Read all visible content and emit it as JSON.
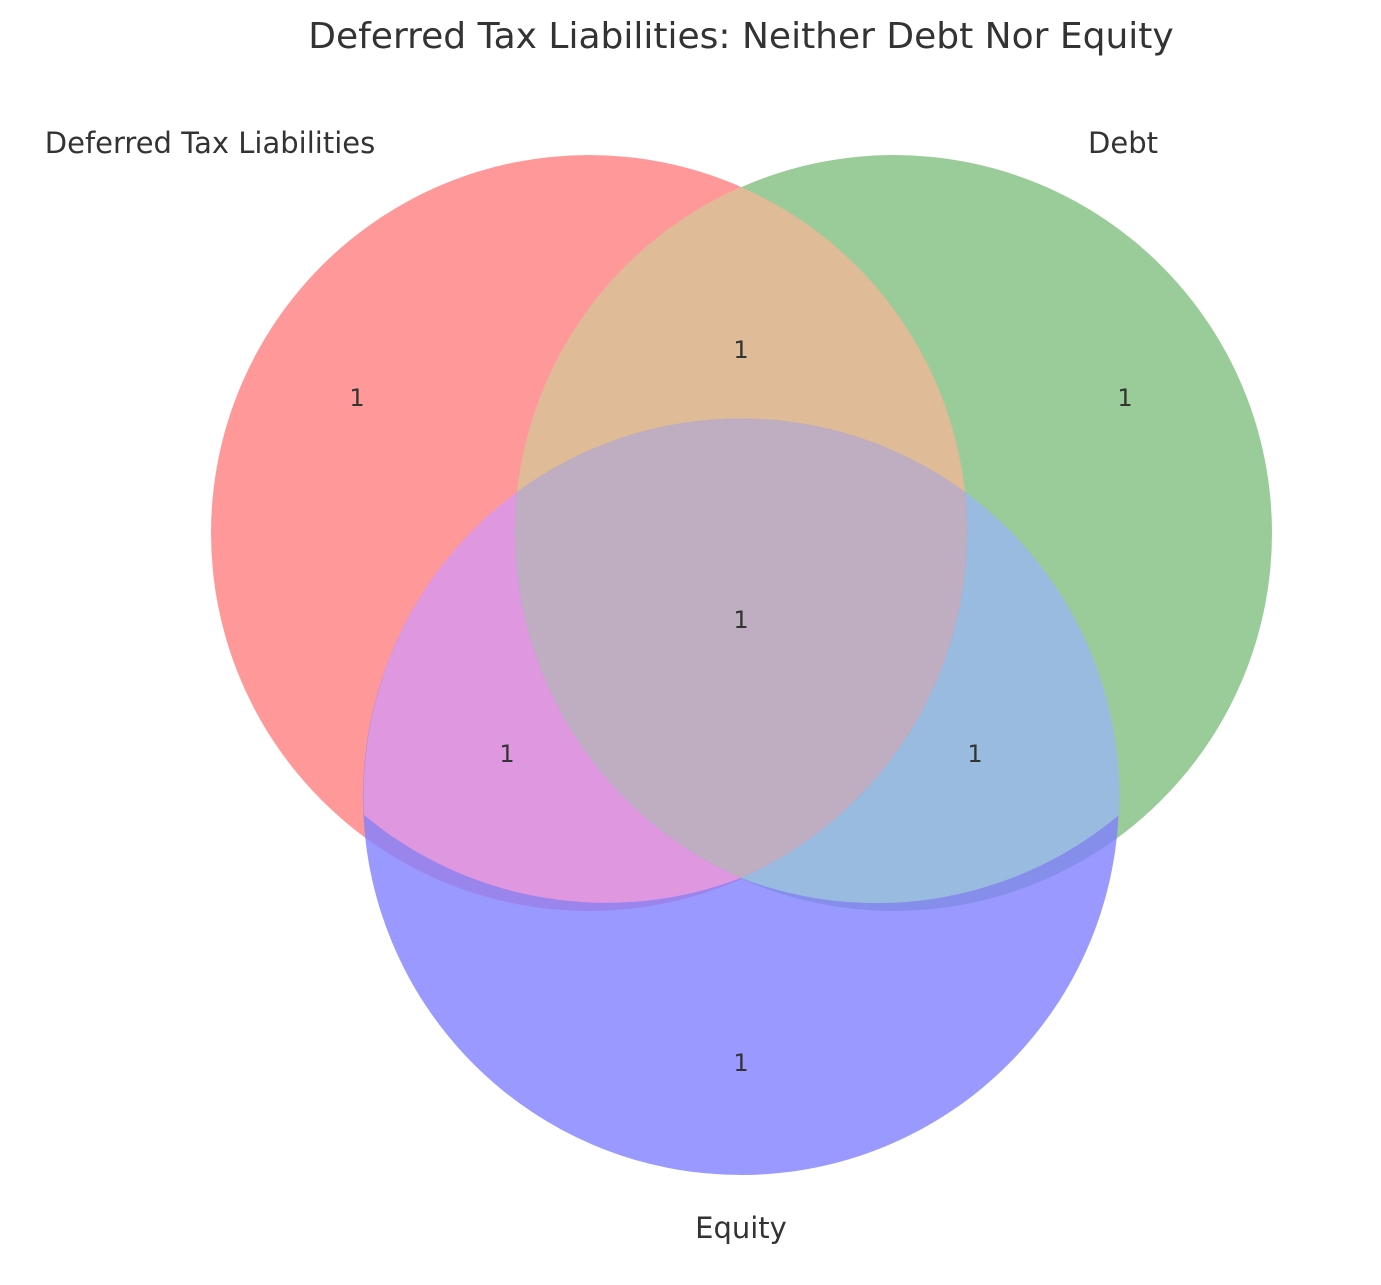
{
  "title": "Deferred Tax Liabilities: Neither Debt Nor Equity",
  "sets": [
    {
      "id": "dtl",
      "label": "Deferred Tax Liabilities",
      "color": "#ff7f7f"
    },
    {
      "id": "debt",
      "label": "Debt",
      "color": "#7fbf7f"
    },
    {
      "id": "equity",
      "label": "Equity",
      "color": "#7f7fff"
    }
  ],
  "regions": {
    "dtl_only": "1",
    "debt_only": "1",
    "equity_only": "1",
    "dtl_debt": "1",
    "dtl_equity": "1",
    "debt_equity": "1",
    "all_three": "1"
  }
}
